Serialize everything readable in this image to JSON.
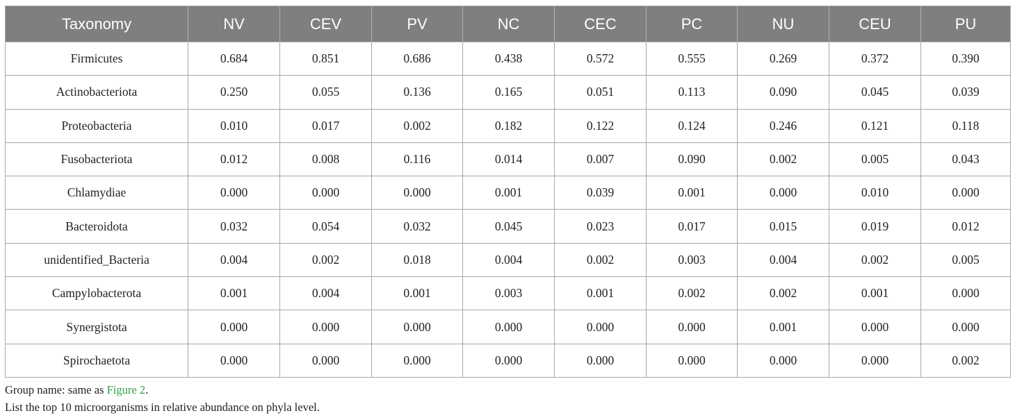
{
  "table": {
    "header": [
      "Taxonomy",
      "NV",
      "CEV",
      "PV",
      "NC",
      "CEC",
      "PC",
      "NU",
      "CEU",
      "PU"
    ],
    "rows": [
      [
        "Firmicutes",
        "0.684",
        "0.851",
        "0.686",
        "0.438",
        "0.572",
        "0.555",
        "0.269",
        "0.372",
        "0.390"
      ],
      [
        "Actinobacteriota",
        "0.250",
        "0.055",
        "0.136",
        "0.165",
        "0.051",
        "0.113",
        "0.090",
        "0.045",
        "0.039"
      ],
      [
        "Proteobacteria",
        "0.010",
        "0.017",
        "0.002",
        "0.182",
        "0.122",
        "0.124",
        "0.246",
        "0.121",
        "0.118"
      ],
      [
        "Fusobacteriota",
        "0.012",
        "0.008",
        "0.116",
        "0.014",
        "0.007",
        "0.090",
        "0.002",
        "0.005",
        "0.043"
      ],
      [
        "Chlamydiae",
        "0.000",
        "0.000",
        "0.000",
        "0.001",
        "0.039",
        "0.001",
        "0.000",
        "0.010",
        "0.000"
      ],
      [
        "Bacteroidota",
        "0.032",
        "0.054",
        "0.032",
        "0.045",
        "0.023",
        "0.017",
        "0.015",
        "0.019",
        "0.012"
      ],
      [
        "unidentified_Bacteria",
        "0.004",
        "0.002",
        "0.018",
        "0.004",
        "0.002",
        "0.003",
        "0.004",
        "0.002",
        "0.005"
      ],
      [
        "Campylobacterota",
        "0.001",
        "0.004",
        "0.001",
        "0.003",
        "0.001",
        "0.002",
        "0.002",
        "0.001",
        "0.000"
      ],
      [
        "Synergistota",
        "0.000",
        "0.000",
        "0.000",
        "0.000",
        "0.000",
        "0.000",
        "0.001",
        "0.000",
        "0.000"
      ],
      [
        "Spirochaetota",
        "0.000",
        "0.000",
        "0.000",
        "0.000",
        "0.000",
        "0.000",
        "0.000",
        "0.000",
        "0.002"
      ]
    ]
  },
  "notes": [
    {
      "prefix": "Group name: same as",
      "link": "Figure 2",
      "suffix": "."
    },
    {
      "text": "List the top 10 microorganisms in relative abundance on phyla level."
    }
  ]
}
